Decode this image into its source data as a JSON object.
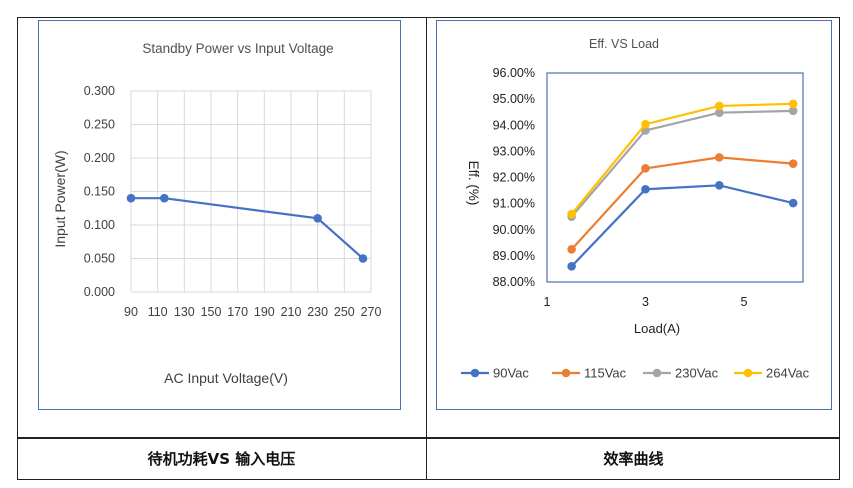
{
  "captions": {
    "left": "待机功耗VS 输入电压",
    "right": "效率曲线"
  },
  "colors": {
    "standby_line": "#4472c4",
    "grid": "#d9d9d9",
    "box_border": "#4a72b0"
  },
  "chart_data": [
    {
      "type": "line",
      "title": "Standby Power vs Input Voltage",
      "xlabel": "AC Input Voltage(V)",
      "ylabel": "Input Power(W)",
      "x_ticks": [
        "90",
        "110",
        "130",
        "150",
        "170",
        "190",
        "210",
        "230",
        "250",
        "270"
      ],
      "y_ticks": [
        "0.000",
        "0.050",
        "0.100",
        "0.150",
        "0.200",
        "0.250",
        "0.300"
      ],
      "xlim": [
        90,
        270
      ],
      "ylim": [
        0,
        0.3
      ],
      "grid": true,
      "series": [
        {
          "x": [
            90,
            115,
            230,
            264
          ],
          "y": [
            0.14,
            0.14,
            0.11,
            0.05
          ],
          "color": "#4472c4"
        }
      ]
    },
    {
      "type": "line",
      "title": "Eff. VS Load",
      "xlabel": "Load(A)",
      "ylabel": "Eff. (%)",
      "x_ticks": [
        "1",
        "3",
        "5"
      ],
      "y_ticks": [
        "88.00%",
        "89.00%",
        "90.00%",
        "91.00%",
        "92.00%",
        "93.00%",
        "94.00%",
        "95.00%",
        "96.00%"
      ],
      "xlim": [
        1,
        6.2
      ],
      "ylim": [
        88,
        96
      ],
      "grid": false,
      "legend": "bottom",
      "x": [
        1.5,
        3,
        4.5,
        6
      ],
      "series": [
        {
          "name": "90Vac",
          "color": "#4472c4",
          "values": [
            88.6,
            91.55,
            91.7,
            91.02
          ]
        },
        {
          "name": "115Vac",
          "color": "#ed7d31",
          "values": [
            89.25,
            92.35,
            92.77,
            92.53
          ]
        },
        {
          "name": "230Vac",
          "color": "#a5a5a5",
          "values": [
            90.5,
            93.8,
            94.48,
            94.55
          ]
        },
        {
          "name": "264Vac",
          "color": "#ffc000",
          "values": [
            90.6,
            94.04,
            94.74,
            94.82
          ]
        }
      ]
    }
  ]
}
